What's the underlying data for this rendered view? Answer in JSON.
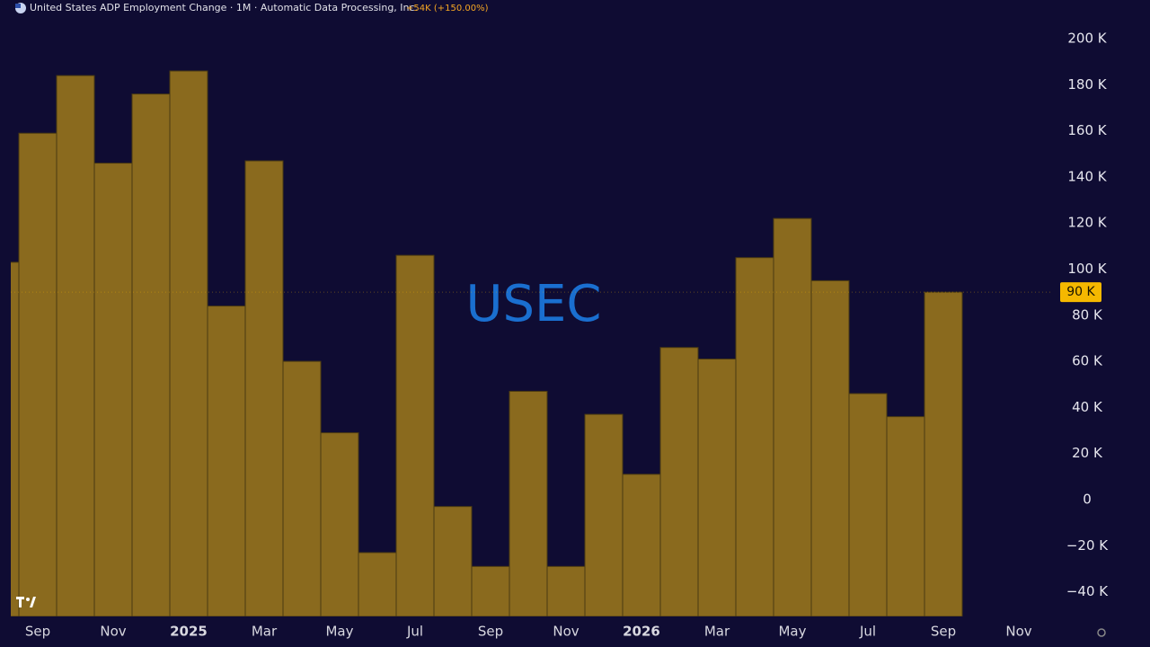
{
  "chart_data": {
    "type": "bar",
    "title": "United States ADP Employment Change · 1M · Automatic Data Processing, Inc.",
    "change_label": "+54K (+150.00%)",
    "watermark": "USEC",
    "categories": [
      null,
      "Sep",
      null,
      "Nov",
      null,
      "2025",
      null,
      "Mar",
      null,
      "May",
      null,
      "Jul",
      null,
      "Sep",
      null,
      "Nov",
      null,
      "2026",
      null,
      "Mar",
      null,
      "May",
      null,
      "Jul",
      null,
      "Sep",
      null,
      "Nov"
    ],
    "values": [
      103,
      159,
      184,
      146,
      176,
      186,
      84,
      147,
      60,
      29,
      -23,
      106,
      -3,
      -29,
      47,
      -29,
      37,
      11,
      66,
      61,
      105,
      122,
      95,
      46,
      36,
      90,
      null,
      null
    ],
    "color": "#8a6a1e",
    "last_value": {
      "value": 90,
      "label": "90 K"
    },
    "ylim": [
      -50.7,
      216.8
    ],
    "yticks": [
      {
        "value": -40,
        "label": "−40 K"
      },
      {
        "value": -20,
        "label": "−20 K"
      },
      0,
      {
        "value": 20,
        "label": "20 K"
      },
      {
        "value": 40,
        "label": "40 K"
      },
      {
        "value": 60,
        "label": "60 K"
      },
      {
        "value": 80,
        "label": "80 K"
      },
      {
        "value": 100,
        "label": "100 K"
      },
      {
        "value": 120,
        "label": "120 K"
      },
      {
        "value": 140,
        "label": "140 K"
      },
      {
        "value": 160,
        "label": "160 K"
      },
      {
        "value": 180,
        "label": "180 K"
      },
      {
        "value": 200,
        "label": "200 K"
      }
    ],
    "grid": false
  }
}
